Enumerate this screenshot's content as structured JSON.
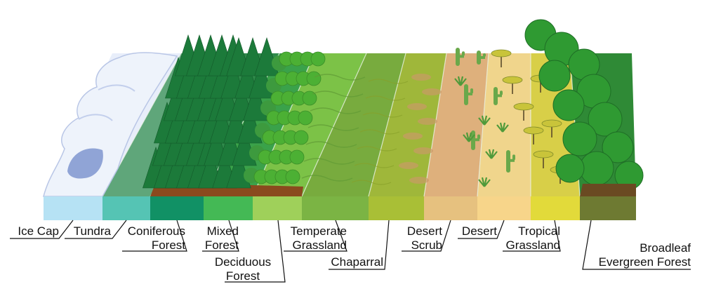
{
  "diagram": {
    "biomes": [
      {
        "id": "ice-cap",
        "label_lines": [
          "Ice Cap"
        ],
        "band_color": "#b6e2f4",
        "terrain_color": "#e8eefa"
      },
      {
        "id": "tundra",
        "label_lines": [
          "Tundra"
        ],
        "band_color": "#55c4b4",
        "terrain_color": "#5fa67a"
      },
      {
        "id": "coniferous-forest",
        "label_lines": [
          "Coniferous",
          "Forest"
        ],
        "band_color": "#119165",
        "terrain_color": "#2e8a4a"
      },
      {
        "id": "mixed-forest",
        "label_lines": [
          "Mixed",
          "Forest"
        ],
        "band_color": "#44b955",
        "terrain_color": "#3aa24a"
      },
      {
        "id": "deciduous-forest",
        "label_lines": [
          "Deciduous",
          "Forest"
        ],
        "band_color": "#9fd05a",
        "terrain_color": "#7cc247"
      },
      {
        "id": "temperate-grassland",
        "label_lines": [
          "Temperate",
          "Grassland"
        ],
        "band_color": "#7bb444",
        "terrain_color": "#78ab3e"
      },
      {
        "id": "chaparral",
        "label_lines": [
          "Chaparral"
        ],
        "band_color": "#a9bf36",
        "terrain_color": "#9fb73a"
      },
      {
        "id": "desert-scrub",
        "label_lines": [
          "Desert",
          "Scrub"
        ],
        "band_color": "#e6c17f",
        "terrain_color": "#deb07c"
      },
      {
        "id": "desert",
        "label_lines": [
          "Desert"
        ],
        "band_color": "#f7d58a",
        "terrain_color": "#f0d58c"
      },
      {
        "id": "tropical-grassland",
        "label_lines": [
          "Tropical",
          "Grassland"
        ],
        "band_color": "#e2da3a",
        "terrain_color": "#d8cf48"
      },
      {
        "id": "broadleaf-evergreen-forest",
        "label_lines": [
          "Broadleaf",
          "Evergreen Forest"
        ],
        "band_color": "#6e7a32",
        "terrain_color": "#2f8a36"
      }
    ],
    "colors": {
      "leader_line": "#111111",
      "soil": "#8a4a1e",
      "conifer": "#1c7a3a",
      "deciduous_canopy": "#4cb034",
      "broadleaf_canopy": "#2f9a32",
      "cactus": "#6aa84a",
      "acacia": "#c9c43a"
    }
  }
}
